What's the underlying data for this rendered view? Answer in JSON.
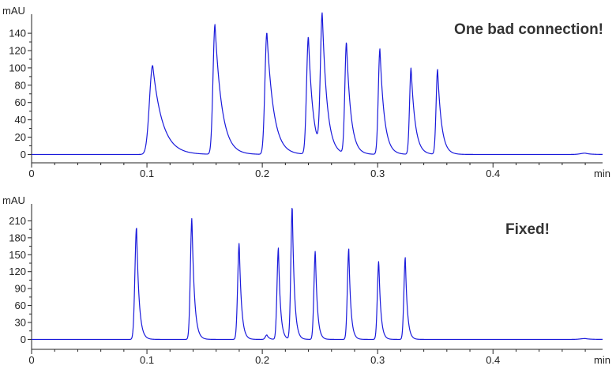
{
  "chart_data": [
    {
      "type": "line",
      "annotation": "One bad connection!",
      "ylabel": "mAU",
      "xunit": "min",
      "xlim": [
        0,
        0.495
      ],
      "ylim": [
        -6,
        162
      ],
      "xticks": [
        0,
        0.1,
        0.2,
        0.3,
        0.4
      ],
      "xtick_labels": [
        "0",
        "0.1",
        "0.2",
        "0.3",
        "0.4"
      ],
      "yticks": [
        0,
        20,
        40,
        60,
        80,
        100,
        120,
        140
      ],
      "ytick_labels": [
        "0",
        "20",
        "40",
        "60",
        "80",
        "100",
        "120",
        "140"
      ],
      "baseline": 0,
      "peaks": [
        {
          "t": 0.105,
          "height": 103,
          "rise": 0.0028,
          "tail": 0.0085
        },
        {
          "t": 0.159,
          "height": 150,
          "rise": 0.0017,
          "tail": 0.006
        },
        {
          "t": 0.204,
          "height": 141,
          "rise": 0.0017,
          "tail": 0.0058
        },
        {
          "t": 0.24,
          "height": 136,
          "rise": 0.0016,
          "tail": 0.004
        },
        {
          "t": 0.252,
          "height": 157,
          "rise": 0.0016,
          "tail": 0.0042
        },
        {
          "t": 0.273,
          "height": 129,
          "rise": 0.0014,
          "tail": 0.0038
        },
        {
          "t": 0.302,
          "height": 122,
          "rise": 0.0014,
          "tail": 0.0038
        },
        {
          "t": 0.329,
          "height": 100,
          "rise": 0.0013,
          "tail": 0.0036
        },
        {
          "t": 0.352,
          "height": 98,
          "rise": 0.0013,
          "tail": 0.0034
        },
        {
          "t": 0.48,
          "height": 1.5,
          "rise": 0.004,
          "tail": 0.004
        }
      ],
      "series": [
        {
          "color": "#1a1adb"
        }
      ]
    },
    {
      "type": "line",
      "annotation": "Fixed!",
      "ylabel": "mAU",
      "xunit": "min",
      "xlim": [
        0,
        0.495
      ],
      "ylim": [
        -12,
        240
      ],
      "xticks": [
        0,
        0.1,
        0.2,
        0.3,
        0.4
      ],
      "xtick_labels": [
        "0",
        "0.1",
        "0.2",
        "0.3",
        "0.4"
      ],
      "yticks": [
        0,
        30,
        60,
        90,
        120,
        150,
        180,
        210
      ],
      "ytick_labels": [
        "0",
        "30",
        "60",
        "90",
        "120",
        "150",
        "180",
        "210"
      ],
      "baseline": 0,
      "peaks": [
        {
          "t": 0.091,
          "height": 199,
          "rise": 0.0014,
          "tail": 0.0022
        },
        {
          "t": 0.139,
          "height": 215,
          "rise": 0.0013,
          "tail": 0.0022
        },
        {
          "t": 0.18,
          "height": 171,
          "rise": 0.0013,
          "tail": 0.002
        },
        {
          "t": 0.204,
          "height": 8,
          "rise": 0.0013,
          "tail": 0.0018
        },
        {
          "t": 0.214,
          "height": 162,
          "rise": 0.0012,
          "tail": 0.0018
        },
        {
          "t": 0.226,
          "height": 236,
          "rise": 0.0012,
          "tail": 0.0019
        },
        {
          "t": 0.246,
          "height": 157,
          "rise": 0.0012,
          "tail": 0.0018
        },
        {
          "t": 0.275,
          "height": 160,
          "rise": 0.0012,
          "tail": 0.0018
        },
        {
          "t": 0.301,
          "height": 139,
          "rise": 0.0012,
          "tail": 0.0018
        },
        {
          "t": 0.324,
          "height": 145,
          "rise": 0.0012,
          "tail": 0.0018
        },
        {
          "t": 0.48,
          "height": 1.5,
          "rise": 0.004,
          "tail": 0.004
        }
      ],
      "series": [
        {
          "color": "#1a1adb"
        }
      ]
    }
  ]
}
